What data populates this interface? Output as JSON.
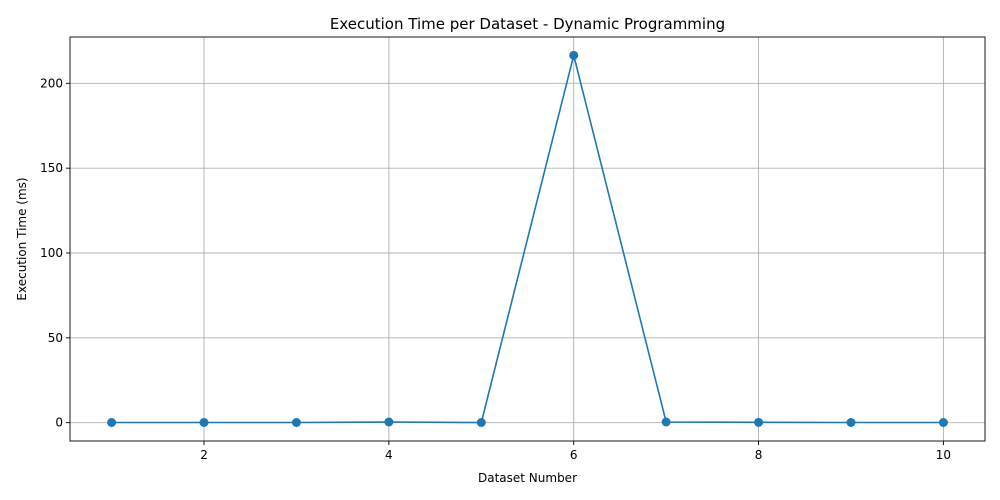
{
  "chart_data": {
    "type": "line",
    "title": "Execution Time per Dataset - Dynamic Programming",
    "xlabel": "Dataset Number",
    "ylabel": "Execution Time (ms)",
    "x": [
      1,
      2,
      3,
      4,
      5,
      6,
      7,
      8,
      9,
      10
    ],
    "series": [
      {
        "values": [
          0.1,
          0.1,
          0.1,
          0.4,
          0.1,
          216.5,
          0.4,
          0.2,
          0.1,
          0.1
        ]
      }
    ],
    "xlim": [
      0.55,
      10.45
    ],
    "ylim": [
      -10.8,
      227.3
    ],
    "xticks": [
      2,
      4,
      6,
      8,
      10
    ],
    "yticks": [
      0,
      50,
      100,
      150,
      200
    ],
    "grid": true,
    "marker": "circle",
    "color": "#1f77b4"
  }
}
